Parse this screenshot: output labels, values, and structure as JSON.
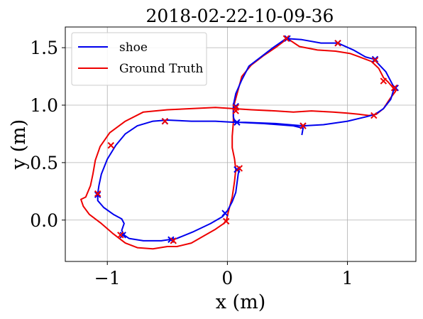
{
  "chart_data": {
    "type": "line",
    "title": "2018-02-22-10-09-36",
    "xlabel": "x (m)",
    "ylabel": "y (m)",
    "xlim": [
      -1.35,
      1.57
    ],
    "ylim": [
      -0.36,
      1.68
    ],
    "xticks": [
      -1,
      0,
      1
    ],
    "yticks": [
      0.0,
      0.5,
      1.0,
      1.5
    ],
    "xtick_labels": [
      "−1",
      "0",
      "1"
    ],
    "ytick_labels": [
      "0.0",
      "0.5",
      "1.0",
      "1.5"
    ],
    "grid": true,
    "legend_position": "top-left",
    "series": [
      {
        "name": "shoe",
        "color": "#0000ee",
        "x": [
          0.62,
          0.63,
          0.55,
          0.3,
          0.1,
          0.06,
          0.05,
          0.05,
          0.07,
          0.12,
          0.18,
          0.28,
          0.38,
          0.49,
          0.62,
          0.78,
          0.92,
          1.05,
          1.15,
          1.22,
          1.32,
          1.39,
          1.36,
          1.3,
          1.23,
          1.16,
          1.0,
          0.8,
          0.63,
          0.4,
          0.15,
          0.07,
          -0.1,
          -0.3,
          -0.5,
          -0.62,
          -0.75,
          -0.85,
          -0.93,
          -1.0,
          -1.05,
          -1.07,
          -1.08,
          -1.08,
          -1.03,
          -0.95,
          -0.88,
          -0.86,
          -0.88,
          -0.86,
          -0.82,
          -0.7,
          -0.55,
          -0.42,
          -0.28,
          -0.14,
          -0.04,
          0.0,
          0.04,
          0.07,
          0.08,
          0.09,
          0.1,
          0.1,
          0.09
        ],
        "y": [
          0.74,
          0.8,
          0.82,
          0.84,
          0.85,
          0.86,
          0.9,
          1.0,
          1.1,
          1.22,
          1.34,
          1.42,
          1.5,
          1.58,
          1.57,
          1.54,
          1.54,
          1.48,
          1.42,
          1.4,
          1.29,
          1.15,
          1.05,
          0.97,
          0.92,
          0.9,
          0.86,
          0.83,
          0.82,
          0.84,
          0.85,
          0.85,
          0.86,
          0.86,
          0.87,
          0.86,
          0.82,
          0.75,
          0.65,
          0.53,
          0.4,
          0.3,
          0.23,
          0.17,
          0.11,
          0.05,
          0.01,
          -0.03,
          -0.09,
          -0.13,
          -0.16,
          -0.18,
          -0.18,
          -0.16,
          -0.1,
          -0.03,
          0.03,
          0.08,
          0.16,
          0.24,
          0.32,
          0.4,
          0.45,
          0.46,
          0.45
        ]
      },
      {
        "name": "Ground Truth",
        "color": "#ee0000",
        "x": [
          -0.01,
          0.01,
          0.04,
          0.06,
          0.07,
          0.06,
          0.04,
          0.04,
          0.05,
          0.05,
          0.12,
          0.2,
          0.3,
          0.4,
          0.5,
          0.6,
          0.75,
          0.9,
          1.02,
          1.1,
          1.2,
          1.26,
          1.3,
          1.34,
          1.38,
          1.4,
          1.35,
          1.3,
          1.24,
          1.18,
          1.1,
          1.0,
          0.88,
          0.7,
          0.55,
          0.4,
          0.2,
          0.05,
          -0.1,
          -0.3,
          -0.5,
          -0.7,
          -0.85,
          -0.98,
          -1.06,
          -1.1,
          -1.12,
          -1.14,
          -1.18,
          -1.22,
          -1.2,
          -1.15,
          -1.05,
          -0.95,
          -0.85,
          -0.75,
          -0.62,
          -0.5,
          -0.42,
          -0.3,
          -0.2,
          -0.1,
          -0.03,
          -0.01
        ],
        "y": [
          -0.01,
          0.08,
          0.2,
          0.34,
          0.44,
          0.53,
          0.63,
          0.73,
          0.85,
          0.98,
          1.25,
          1.35,
          1.43,
          1.5,
          1.58,
          1.51,
          1.48,
          1.47,
          1.45,
          1.42,
          1.38,
          1.32,
          1.24,
          1.2,
          1.15,
          1.12,
          1.05,
          0.97,
          0.92,
          0.91,
          0.92,
          0.93,
          0.94,
          0.95,
          0.94,
          0.95,
          0.96,
          0.97,
          0.98,
          0.97,
          0.96,
          0.94,
          0.86,
          0.76,
          0.64,
          0.52,
          0.4,
          0.3,
          0.2,
          0.18,
          0.12,
          0.05,
          -0.03,
          -0.12,
          -0.2,
          -0.24,
          -0.25,
          -0.23,
          -0.23,
          -0.2,
          -0.14,
          -0.08,
          -0.03,
          0.0
        ]
      }
    ],
    "markers": {
      "shoe": {
        "x": [
          0.5,
          0.92,
          1.23,
          1.4,
          0.63,
          0.08,
          -0.52,
          -1.08,
          -0.87,
          -0.47,
          -0.02,
          0.07,
          0.08
        ],
        "y": [
          1.58,
          1.54,
          1.4,
          1.15,
          0.82,
          0.85,
          0.86,
          0.22,
          -0.13,
          -0.17,
          0.06,
          0.99,
          0.44
        ]
      },
      "Ground Truth": {
        "x": [
          0.49,
          0.92,
          1.23,
          1.39,
          1.3,
          1.22,
          0.63,
          0.07,
          -0.52,
          -0.97,
          -1.08,
          -0.89,
          -0.45,
          -0.01,
          0.07,
          0.1
        ],
        "y": [
          1.58,
          1.54,
          1.39,
          1.15,
          1.21,
          0.91,
          0.82,
          0.98,
          0.86,
          0.65,
          0.23,
          -0.13,
          -0.18,
          -0.01,
          0.95,
          0.45
        ]
      }
    }
  }
}
